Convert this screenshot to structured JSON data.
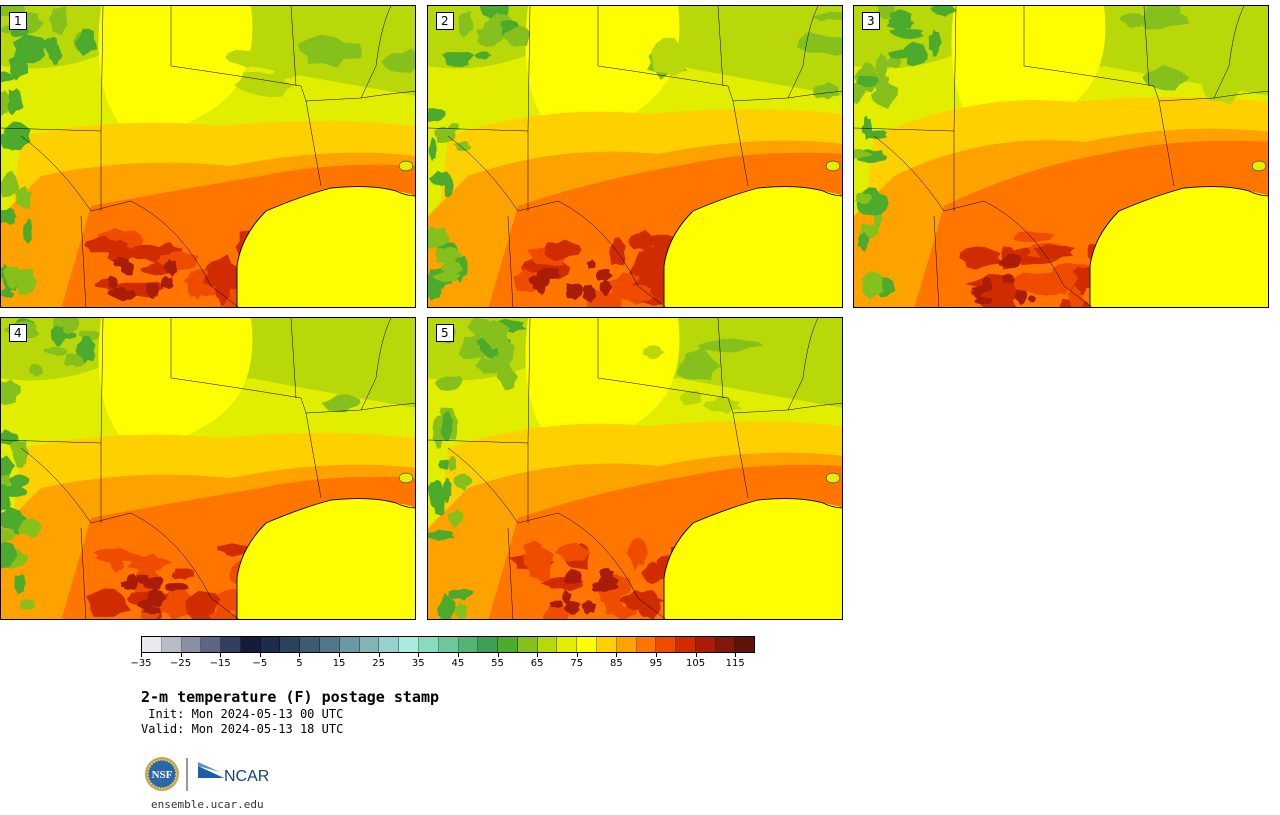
{
  "panels": [
    {
      "label": "1",
      "variant": 0
    },
    {
      "label": "2",
      "variant": 1
    },
    {
      "label": "3",
      "variant": 2
    },
    {
      "label": "4",
      "variant": 0
    },
    {
      "label": "5",
      "variant": 1
    }
  ],
  "colorbar": {
    "min": -35,
    "max": 120,
    "step": 5,
    "tick_labels": [
      "−35",
      "−25",
      "−15",
      "−5",
      "5",
      "15",
      "25",
      "35",
      "45",
      "55",
      "65",
      "75",
      "85",
      "95",
      "105",
      "115"
    ],
    "tick_values": [
      -35,
      -25,
      -15,
      -5,
      5,
      15,
      25,
      35,
      45,
      55,
      65,
      75,
      85,
      95,
      105,
      115
    ],
    "colors": [
      "#e8eaee",
      "#b8bcc8",
      "#8a90a4",
      "#5c6582",
      "#343e5e",
      "#141c3a",
      "#1c2c4c",
      "#2a4460",
      "#3c5c74",
      "#50788a",
      "#6a98a4",
      "#82b4b8",
      "#98d0cc",
      "#a8ece0",
      "#86dcbc",
      "#6cc898",
      "#54b474",
      "#3ea054",
      "#4caa2c",
      "#86c01c",
      "#b8d80a",
      "#e2ee00",
      "#fefe00",
      "#fed000",
      "#fea200",
      "#fe7600",
      "#f04c00",
      "#d02c00",
      "#a81c08",
      "#80180c",
      "#601408"
    ]
  },
  "title": "2-m temperature (F) postage stamp",
  "init": " Init: Mon 2024-05-13 00 UTC",
  "valid": "Valid: Mon 2024-05-13 18 UTC",
  "logos": {
    "nsf": "NSF",
    "ncar": "NCAR"
  },
  "site": "ensemble.ucar.edu"
}
